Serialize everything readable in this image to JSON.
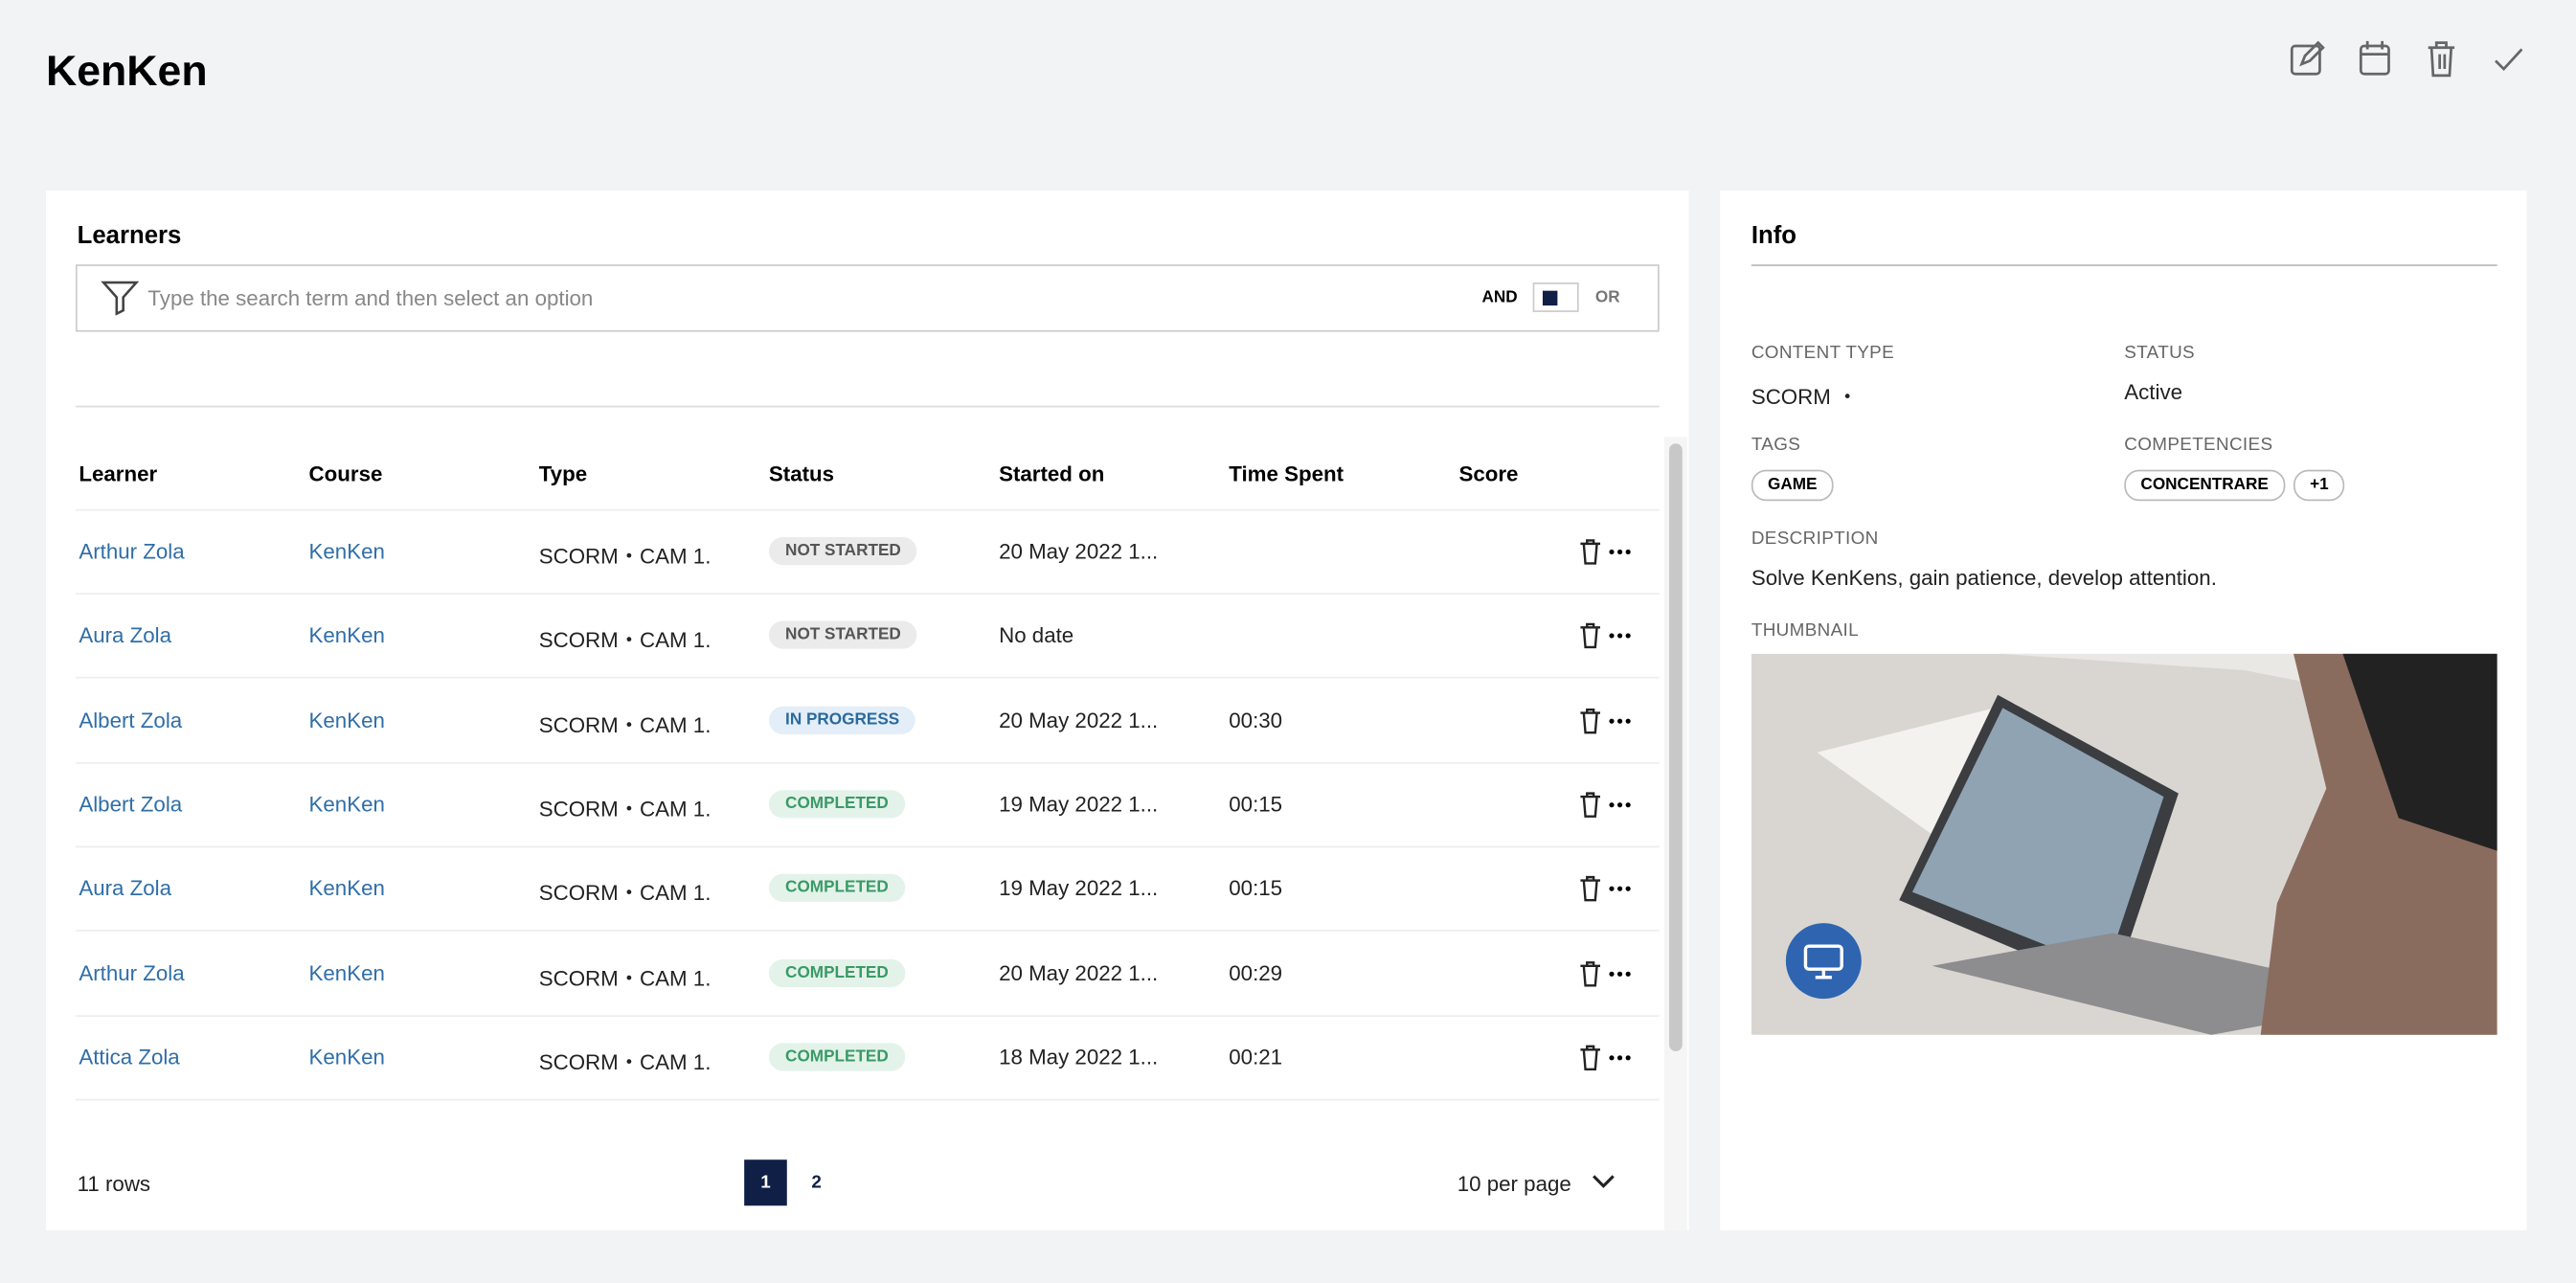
{
  "header": {
    "title": "KenKen"
  },
  "learners": {
    "title": "Learners",
    "search_placeholder": "Type the search term and then select an option",
    "and_label": "AND",
    "or_label": "OR",
    "columns": [
      "Learner",
      "Course",
      "Type",
      "Status",
      "Started on",
      "Time Spent",
      "Score"
    ],
    "rows": [
      [
        "Arthur Zola",
        "KenKen",
        "SCORM・CAM 1.",
        "NOT STARTED",
        "20 May 2022 1...",
        null
      ],
      [
        "Aura Zola",
        "KenKen",
        "SCORM・CAM 1.",
        "NOT STARTED",
        "No date",
        null
      ],
      [
        "Albert Zola",
        "KenKen",
        "SCORM・CAM 1.",
        "IN PROGRESS",
        "20 May 2022 1...",
        "00:30"
      ],
      [
        "Albert Zola",
        "KenKen",
        "SCORM・CAM 1.",
        "COMPLETED",
        "19 May 2022 1...",
        "00:15"
      ],
      [
        "Aura Zola",
        "KenKen",
        "SCORM・CAM 1.",
        "COMPLETED",
        "19 May 2022 1...",
        "00:15"
      ],
      [
        "Arthur Zola",
        "KenKen",
        "SCORM・CAM 1.",
        "COMPLETED",
        "20 May 2022 1...",
        "00:29"
      ],
      [
        "Attica Zola",
        "KenKen",
        "SCORM・CAM 1.",
        "COMPLETED",
        "18 May 2022 1...",
        "00:21"
      ]
    ],
    "row_count": "11 rows",
    "pages": [
      "1",
      "2"
    ],
    "per_page": "10 per page"
  },
  "info": {
    "title": "Info",
    "content_type_label": "CONTENT TYPE",
    "content_type": "SCORM ・",
    "status_label": "STATUS",
    "status": "Active",
    "tags_label": "TAGS",
    "tags": [
      "GAME"
    ],
    "competencies_label": "COMPETENCIES",
    "competencies": [
      "CONCENTRARE",
      "+1"
    ],
    "description_label": "DESCRIPTION",
    "description": "Solve KenKens, gain patience, develop attention.",
    "thumbnail_label": "THUMBNAIL"
  }
}
